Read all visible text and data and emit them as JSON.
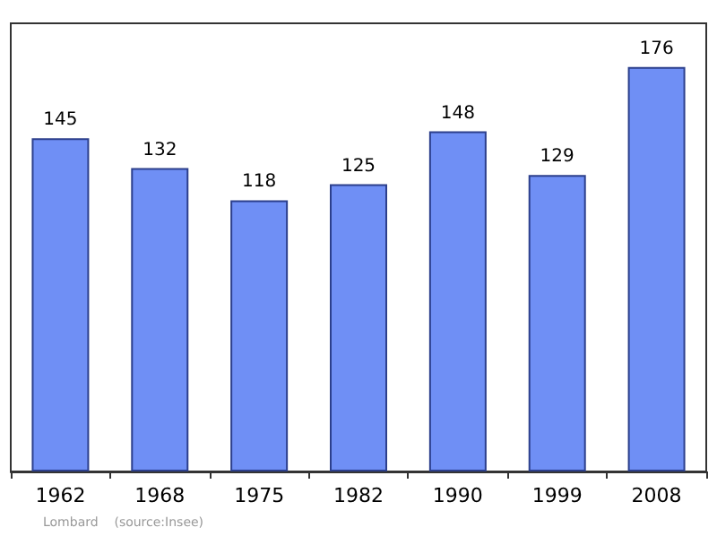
{
  "chart_data": {
    "type": "bar",
    "categories": [
      "1962",
      "1968",
      "1975",
      "1982",
      "1990",
      "1999",
      "2008"
    ],
    "values": [
      145,
      132,
      118,
      125,
      148,
      129,
      176
    ],
    "color": "#6f8ff5",
    "data_labels": true,
    "annotations": [
      "Lombard    (source:Insee)"
    ]
  }
}
